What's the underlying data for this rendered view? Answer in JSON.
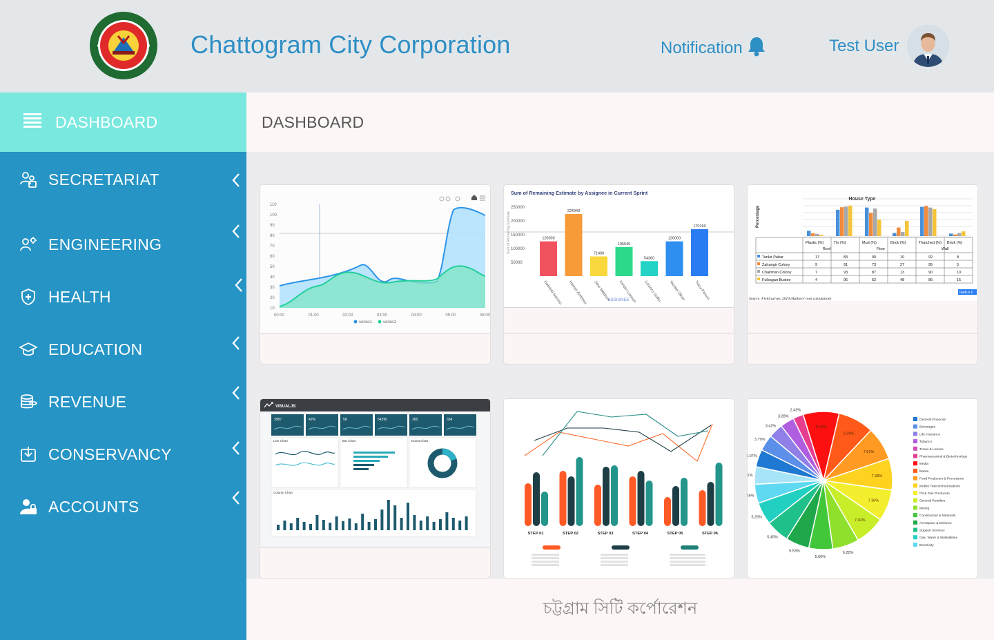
{
  "header": {
    "title": "Chattogram City Corporation",
    "notification_label": "Notification",
    "user_name": "Test User"
  },
  "sidebar": {
    "items": [
      {
        "label": "DASHBOARD",
        "icon": "menu-icon"
      },
      {
        "label": "SECRETARIAT",
        "icon": "users-icon"
      },
      {
        "label": "ENGINEERING",
        "icon": "engineer-icon"
      },
      {
        "label": "HEALTH",
        "icon": "shield-plus-icon"
      },
      {
        "label": "EDUCATION",
        "icon": "graduation-cap-icon"
      },
      {
        "label": "REVENUE",
        "icon": "coins-icon"
      },
      {
        "label": "CONSERVANCY",
        "icon": "tray-download-icon"
      },
      {
        "label": "ACCOUNTS",
        "icon": "user-lock-icon"
      }
    ]
  },
  "main": {
    "title": "DASHBOARD",
    "footer_text": "চট্টগ্রাম সিটি কর্পোরেশন"
  },
  "colors": {
    "accent": "#2e8fc4",
    "sidebar": "#2694c5",
    "sidebar_active": "#79e8df"
  },
  "thumbnails": {
    "area": {
      "x_ticks": [
        "00:00",
        "01:00",
        "02:00",
        "03:00",
        "04:00",
        "05:00",
        "06:00"
      ],
      "y_ticks": [
        "10",
        "20",
        "30",
        "40",
        "50",
        "60",
        "70",
        "80",
        "90",
        "100",
        "110"
      ],
      "legend": [
        "series1",
        "series2"
      ]
    },
    "bar": {
      "title": "Sum of Remaining Estimate by Assignee in Current Sprint",
      "ylabel": "Sum of Remaining Estimate",
      "xlabel": "ASSIGNEE",
      "y_ticks": [
        "250000",
        "200000",
        "150000",
        "100000",
        "50000"
      ],
      "categories": [
        "Gabriela Narciso",
        "Haman Andrews",
        "Jane Meldrum",
        "Kirsten Lawson",
        "Lorenzo Griffin",
        "Nicolas Oliver",
        "Tracy Parson"
      ],
      "values": [
        126000,
        224940,
        71400,
        105540,
        54360,
        126000,
        170160
      ],
      "labels": [
        "126000",
        "224940",
        "71400",
        "105540",
        "54360",
        "126000",
        "170160"
      ],
      "colors": [
        "#f2525f",
        "#f79a3a",
        "#f8d83c",
        "#2cd88a",
        "#22d3c6",
        "#2e8ff0",
        "#2a7cf3"
      ]
    },
    "table": {
      "title": "House Type",
      "ylabel": "Percentage",
      "columns": [
        "Plastic (%)",
        "Tin (%)",
        "Mud (%)",
        "Brick (%)",
        "Thatched (%)",
        "Brick (%)"
      ],
      "groups": [
        "Roof",
        "Floor",
        "Wall"
      ],
      "rows": [
        {
          "name": "Tankir Pahar",
          "values": [
            "17",
            "83",
            "90",
            "10",
            "92",
            "8"
          ],
          "color": "#4a90d9"
        },
        {
          "name": "Zahangir Colony",
          "values": [
            "9",
            "91",
            "73",
            "27",
            "95",
            "5"
          ],
          "color": "#f08a3c"
        },
        {
          "name": "Chairman Colony",
          "values": [
            "7",
            "93",
            "87",
            "13",
            "90",
            "10"
          ],
          "color": "#a8a8a8"
        },
        {
          "name": "Fulbagan Bustee",
          "values": [
            "4",
            "96",
            "52",
            "48",
            "85",
            "15"
          ],
          "color": "#f6c43a"
        }
      ],
      "source": "Source: Field survey, 2019 (Authors' own calculation)",
      "badge": "Radius 0"
    },
    "dash": {
      "brand": "VISUALJS",
      "kpis": [
        "3987",
        "42%",
        "5K",
        "54395",
        "365",
        "334"
      ],
      "panels": [
        "Line Chart",
        "Bar Chart",
        "Donut Chart",
        "Column Chart"
      ]
    },
    "steps": [
      "STEP 01",
      "STEP 02",
      "STEP 03",
      "STEP 04",
      "STEP 05",
      "STEP 06"
    ],
    "pie": {
      "legend": [
        "General Financial",
        "Beverages",
        "Life Insurance",
        "Tobacco",
        "Travel & Leisure",
        "Pharmaceutical & Biotechnology",
        "Media",
        "Banks",
        "Food Producers & Processors",
        "Mobile Telecommunications",
        "Oil & Gas Producers",
        "General Retailers",
        "Mining",
        "Construction & Materials",
        "Aerospace & Defence",
        "Support Services",
        "Gas, Water & Multiutilities",
        "Electricity"
      ],
      "labels": [
        "2.43%",
        "3.28%",
        "3.42%",
        "3.79%",
        "4.07%",
        "4.11%",
        "4.46%",
        "5.25%",
        "5.45%",
        "5.53%",
        "5.60%",
        "6.22%",
        "7.02%",
        "7.36%",
        "7.39%",
        "7.81%",
        "8.39%",
        "8.43%"
      ]
    }
  }
}
